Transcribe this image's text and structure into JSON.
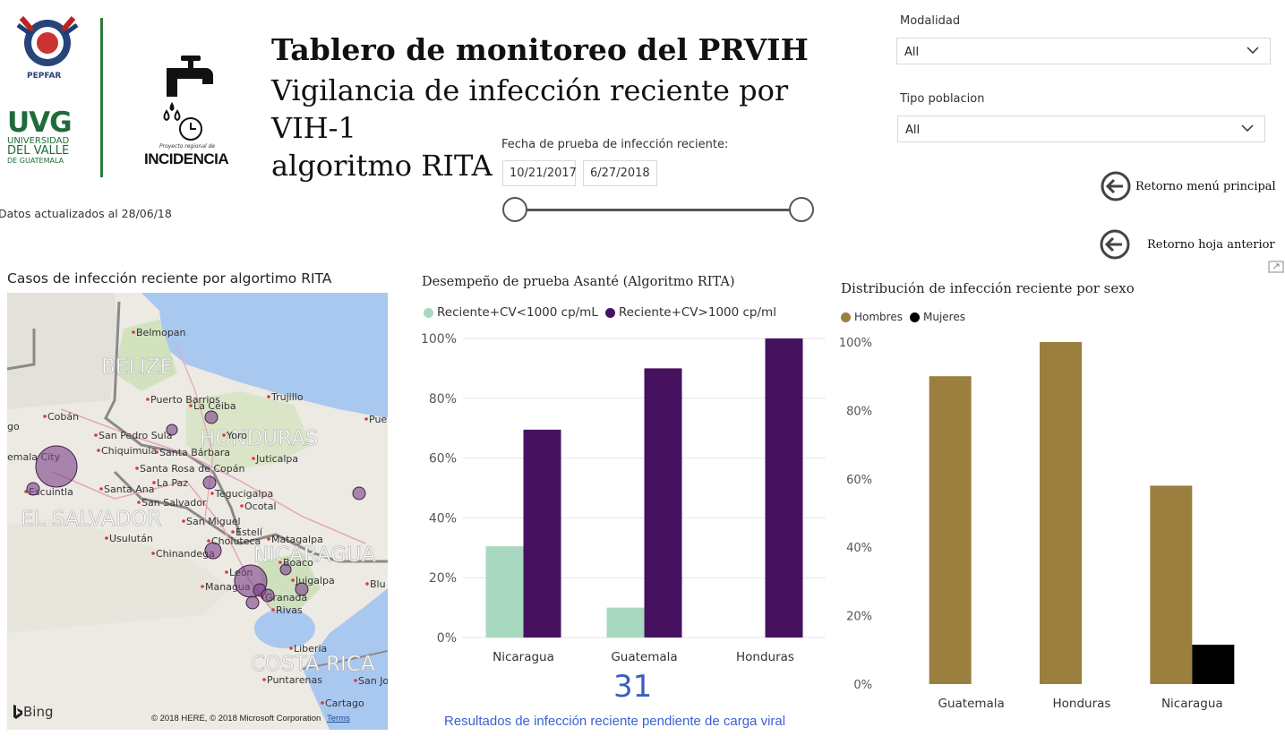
{
  "header": {
    "title": "Tablero de monitoreo del PRVIH",
    "subtitle_line1": "Vigilancia de infección reciente por VIH-1",
    "subtitle_line2": "algoritmo RITA",
    "updated": "Datos actualizados al 28/06/18"
  },
  "logos": {
    "pepfar": "PEPFAR",
    "uvg_big": "UVG",
    "uvg_line1": "UNIVERSIDAD",
    "uvg_line2": "DEL VALLE",
    "uvg_line3": "DE GUATEMALA",
    "incidencia_small": "Proyecto regional de",
    "incidencia": "INCIDENCIA"
  },
  "date_slicer": {
    "label": "Fecha de prueba de infección reciente:",
    "from": "10/21/2017",
    "to": "6/27/2018"
  },
  "filters": {
    "modalidad_label": "Modalidad",
    "modalidad_value": "All",
    "tipo_label": "Tipo poblacion",
    "tipo_value": "All"
  },
  "nav": {
    "menu": "Retorno menú principal",
    "back": "Retorno hoja anterior"
  },
  "map": {
    "title": "Casos de infección reciente por algortimo RITA",
    "bing": "Bing",
    "copyright": "© 2018 HERE, © 2018 Microsoft Corporation",
    "terms": "Terms",
    "country_labels": [
      "BELIZE",
      "HONDURAS",
      "EL SALVADOR",
      "NICARAGUA",
      "COSTA RICA"
    ],
    "city_labels": [
      "Belmopan",
      "Puerto Barrios",
      "La Ceiba",
      "Trujillo",
      "Cobán",
      "San Pedro Sula",
      "Yoro",
      "Chiquimula",
      "Juticalpa",
      "Santa Bárbara",
      "Santa Rosa de Copán",
      "La Paz",
      "Tegucigalpa",
      "Santa Ana",
      "San Salvador",
      "Ocotal",
      "San Miguel",
      "Estelí",
      "Usulután",
      "Matagalpa",
      "Choluteca",
      "Chinandega",
      "León",
      "Boaco",
      "Managua",
      "Juigalpa",
      "Granada",
      "Rivas",
      "Liberia",
      "Puntarenas",
      "Cartago",
      "San Jo",
      "Blu",
      "Pue",
      "Escuintla",
      "emala City",
      "go"
    ]
  },
  "perf_chart": {
    "title": "Desempeño de prueba Asanté (Algoritmo RITA)",
    "kpi_value": "31",
    "kpi_label": "Resultados de infección reciente pendiente de carga viral"
  },
  "sex_chart": {
    "title": "Distribución de infección reciente por sexo"
  },
  "chart_data": [
    {
      "type": "bar",
      "title": "Desempeño de prueba Asanté (Algoritmo RITA)",
      "categories": [
        "Nicaragua",
        "Guatemala",
        "Honduras"
      ],
      "series": [
        {
          "name": "Reciente+CV<1000 cp/mL",
          "color": "#a8d8c0",
          "values": [
            30.5,
            10,
            0
          ]
        },
        {
          "name": "Reciente+CV>1000 cp/ml",
          "color": "#46125f",
          "values": [
            69.5,
            90,
            100
          ]
        }
      ],
      "yticks": [
        "0%",
        "20%",
        "40%",
        "60%",
        "80%",
        "100%"
      ],
      "ylim": [
        0,
        100
      ],
      "legend": "top-left",
      "grid": true
    },
    {
      "type": "bar",
      "title": "Distribución de infección reciente por sexo",
      "categories": [
        "Guatemala",
        "Honduras",
        "Nicaragua"
      ],
      "series": [
        {
          "name": "Hombres",
          "color": "#9b7f3f",
          "values": [
            90,
            100,
            58
          ]
        },
        {
          "name": "Mujeres",
          "color": "#000000",
          "values": [
            0,
            0,
            11.5
          ]
        }
      ],
      "yticks": [
        "0%",
        "20%",
        "40%",
        "60%",
        "80%",
        "100%"
      ],
      "ylim": [
        0,
        100
      ],
      "legend": "top-left",
      "grid": false
    }
  ]
}
